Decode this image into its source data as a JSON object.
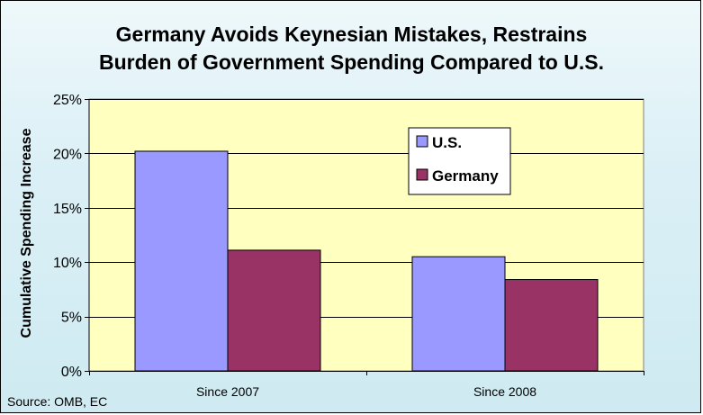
{
  "chart_data": {
    "type": "bar",
    "title_lines": [
      "Germany Avoids Keynesian Mistakes, Restrains",
      "Burden of Government Spending Compared to U.S."
    ],
    "xlabel": "",
    "ylabel": "Cumulative Spending Increase",
    "categories": [
      "Since 2007",
      "Since 2008"
    ],
    "series": [
      {
        "name": "U.S.",
        "values": [
          20.2,
          10.5
        ],
        "color": "#9999ff"
      },
      {
        "name": "Germany",
        "values": [
          11.1,
          8.4
        ],
        "color": "#993366"
      }
    ],
    "ylim": [
      0,
      25
    ],
    "yticks": [
      0,
      5,
      10,
      15,
      20,
      25
    ],
    "ytick_labels": [
      "0%",
      "5%",
      "10%",
      "15%",
      "20%",
      "25%"
    ],
    "grid": true,
    "legend": {
      "position": "top-right-inside",
      "entries": [
        "U.S.",
        "Germany"
      ]
    },
    "plot_background": "#ffffc0",
    "source": "Source: OMB, EC"
  }
}
